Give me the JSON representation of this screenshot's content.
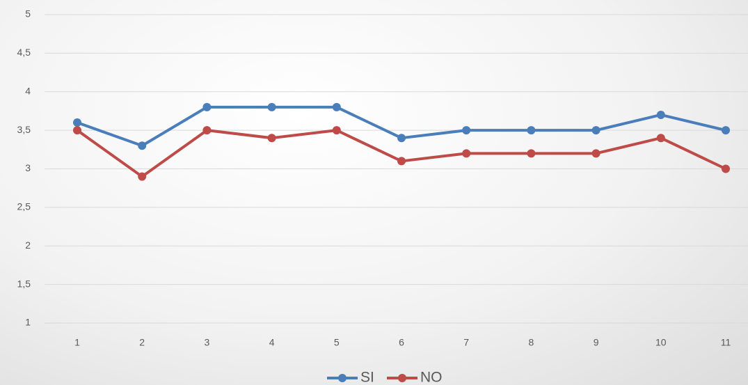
{
  "chart_data": {
    "type": "line",
    "categories": [
      "1",
      "2",
      "3",
      "4",
      "5",
      "6",
      "7",
      "8",
      "9",
      "10",
      "11"
    ],
    "series": [
      {
        "name": "SI",
        "color": "#4a7ebb",
        "values": [
          3.6,
          3.3,
          3.8,
          3.8,
          3.8,
          3.4,
          3.5,
          3.5,
          3.5,
          3.7,
          3.5
        ]
      },
      {
        "name": "NO",
        "color": "#be4b48",
        "values": [
          3.5,
          2.9,
          3.5,
          3.4,
          3.5,
          3.1,
          3.2,
          3.2,
          3.2,
          3.4,
          3.0
        ]
      }
    ],
    "ylim": [
      1,
      5
    ],
    "yticks": [
      1,
      {
        "value": 1.5,
        "label": "1,5"
      },
      2,
      {
        "value": 2.5,
        "label": "2,5"
      },
      3,
      {
        "value": 3.5,
        "label": "3,5"
      },
      4,
      {
        "value": 4.5,
        "label": "4,5"
      },
      5
    ],
    "grid": true,
    "legend": "bottom"
  }
}
